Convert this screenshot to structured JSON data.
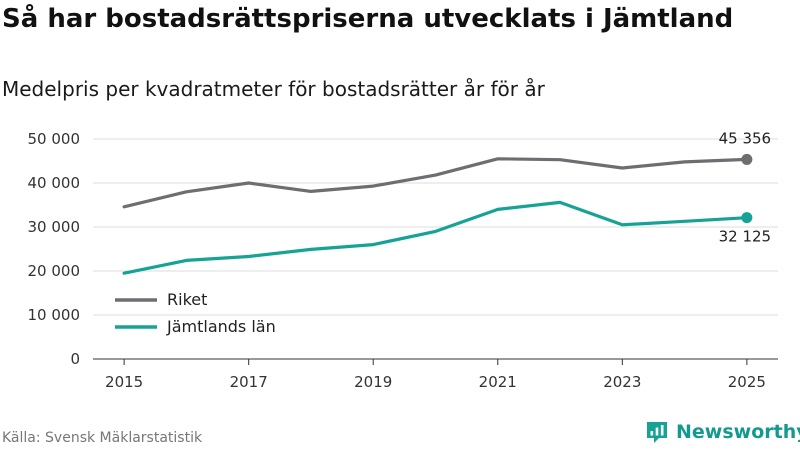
{
  "title": "Så har bostadsrättspriserna utvecklats i Jämtland",
  "subtitle": "Medelpris per kvadratmeter för bostadsrätter år för år",
  "source": "Källa: Svensk Mäklarstatistik",
  "brand": {
    "name": "Newsworthy",
    "icon": "newsworthy-logo-icon"
  },
  "colors": {
    "riket": "#6e6d72",
    "jamtland": "#16a396",
    "grid": "#dddddd",
    "axis": "#333333"
  },
  "chart_data": {
    "type": "line",
    "x": [
      2015,
      2016,
      2017,
      2018,
      2019,
      2020,
      2021,
      2022,
      2023,
      2024,
      2025
    ],
    "x_tick_values": [
      2015,
      2017,
      2019,
      2021,
      2023,
      2025
    ],
    "x_tick_labels": [
      "2015",
      "2017",
      "2019",
      "2021",
      "2023",
      "2025"
    ],
    "y_tick_values": [
      0,
      10000,
      20000,
      30000,
      40000,
      50000
    ],
    "y_tick_labels": [
      "0",
      "10 000",
      "20 000",
      "30 000",
      "40 000",
      "50 000"
    ],
    "ylim": [
      0,
      50000
    ],
    "xlim": [
      2014.5,
      2025.5
    ],
    "grid": true,
    "legend_position": "bottom-left",
    "series": [
      {
        "name": "Riket",
        "color_key": "riket",
        "values": [
          34600,
          38000,
          40000,
          38100,
          39300,
          41800,
          45500,
          45300,
          43400,
          44800,
          45356
        ],
        "end_label": "45 356",
        "end_label_position": "above"
      },
      {
        "name": "Jämtlands län",
        "color_key": "jamtland",
        "values": [
          19500,
          22400,
          23300,
          24900,
          26000,
          29000,
          34000,
          35600,
          30500,
          31300,
          32125
        ],
        "end_label": "32 125",
        "end_label_position": "below"
      }
    ]
  }
}
